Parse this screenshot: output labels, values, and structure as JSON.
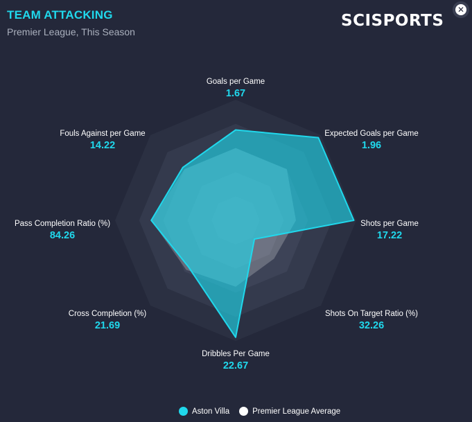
{
  "header": {
    "title": "TEAM ATTACKING",
    "subtitle": "Premier League, This Season",
    "logo": "SCISPORTS"
  },
  "colors": {
    "team": "#20d8ec",
    "average": "#ffffff",
    "background": "#24283a"
  },
  "chart_data": {
    "type": "radar",
    "axes": [
      {
        "label": "Goals per Game",
        "value": "1.67"
      },
      {
        "label": "Expected Goals per Game",
        "value": "1.96"
      },
      {
        "label": "Shots per Game",
        "value": "17.22"
      },
      {
        "label": "Shots On Target Ratio (%)",
        "value": "32.26"
      },
      {
        "label": "Dribbles Per Game",
        "value": "22.67"
      },
      {
        "label": "Cross Completion (%)",
        "value": "21.69"
      },
      {
        "label": "Pass Completion Ratio (%)",
        "value": "84.26"
      },
      {
        "label": "Fouls Against per Game",
        "value": "14.22"
      }
    ],
    "scale": [
      0,
      1
    ],
    "series": [
      {
        "name": "Aston Villa",
        "values": [
          0.75,
          0.97,
          0.98,
          0.22,
          0.97,
          0.55,
          0.7,
          0.62
        ]
      },
      {
        "name": "Premier League Average",
        "values": [
          0.6,
          0.6,
          0.5,
          0.45,
          0.55,
          0.58,
          0.7,
          0.6
        ]
      }
    ]
  },
  "legend": {
    "team": "Aston Villa",
    "average": "Premier League Average"
  }
}
